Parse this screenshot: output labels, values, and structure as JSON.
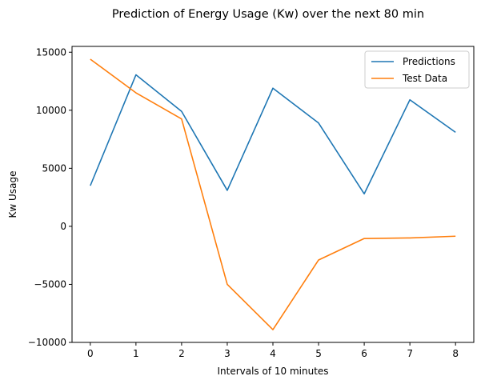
{
  "chart_data": {
    "type": "line",
    "title": "Prediction of Energy Usage (Kw) over the next 80 min",
    "xlabel": "Intervals of 10 minutes",
    "ylabel": "Kw Usage",
    "x": [
      0,
      1,
      2,
      3,
      4,
      5,
      6,
      7,
      8
    ],
    "xlim": [
      -0.4,
      8.4
    ],
    "ylim": [
      -10000,
      15500
    ],
    "xticks": [
      "0",
      "1",
      "2",
      "3",
      "4",
      "5",
      "6",
      "7",
      "8"
    ],
    "yticks": [
      -10000,
      -5000,
      0,
      5000,
      10000,
      15000
    ],
    "ytick_labels": [
      "−10000",
      "−5000",
      "0",
      "5000",
      "10000",
      "15000"
    ],
    "grid": false,
    "legend_position": "top-right",
    "series": [
      {
        "name": "Predictions",
        "color": "#1f77b4",
        "values": [
          3500,
          13050,
          9900,
          3100,
          11900,
          8900,
          2800,
          10900,
          8100
        ]
      },
      {
        "name": "Test Data",
        "color": "#ff7f0e",
        "values": [
          14400,
          11500,
          9250,
          -5000,
          -8900,
          -2900,
          -1050,
          -1000,
          -850
        ]
      }
    ]
  }
}
